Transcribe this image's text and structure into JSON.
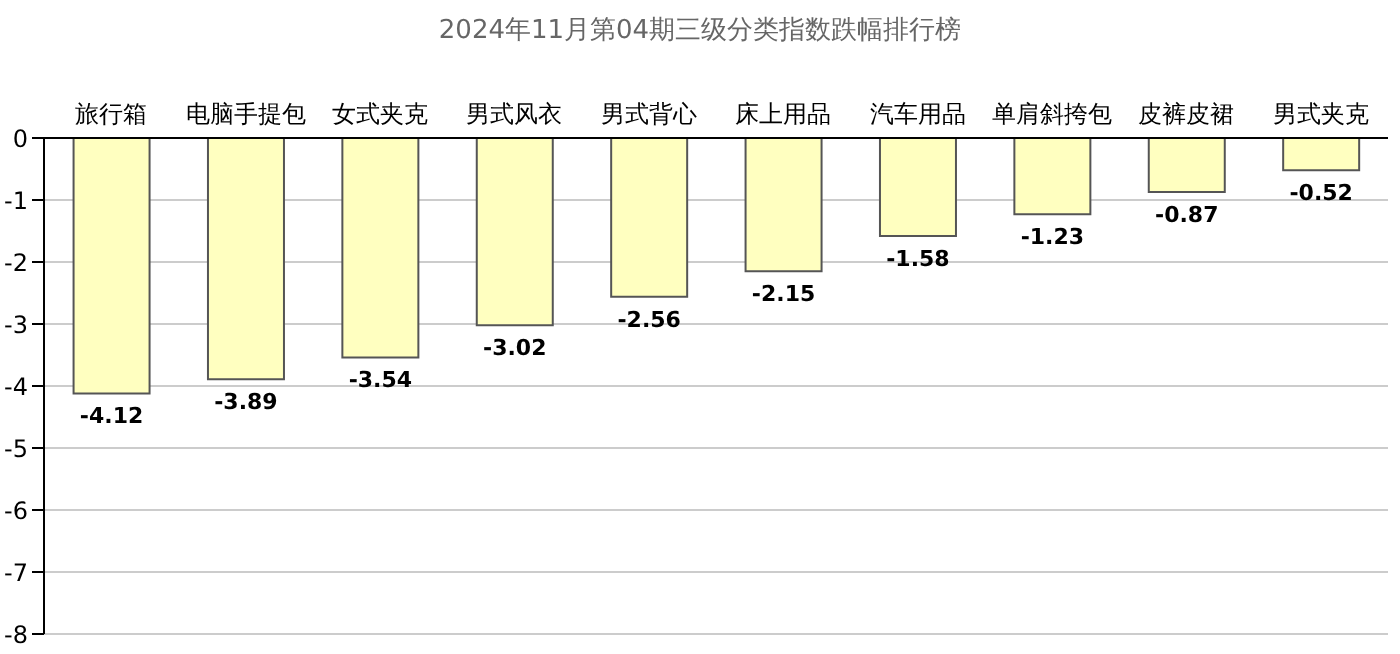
{
  "chart_data": {
    "type": "bar",
    "title": "2024年11月第04期三级分类指数跌幅排行榜",
    "categories": [
      "旅行箱",
      "电脑手提包",
      "女式夹克",
      "男式风衣",
      "男式背心",
      "床上用品",
      "汽车用品",
      "单肩斜挎包",
      "皮裤皮裙",
      "男式夹克"
    ],
    "values": [
      -4.12,
      -3.89,
      -3.54,
      -3.02,
      -2.56,
      -2.15,
      -1.58,
      -1.23,
      -0.87,
      -0.52
    ],
    "color": "#ffffc0",
    "ylim": [
      -8,
      0
    ],
    "yticks": [
      0,
      -1,
      -2,
      -3,
      -4,
      -5,
      -6,
      -7,
      -8
    ],
    "grid": "y",
    "data_labels": true
  }
}
